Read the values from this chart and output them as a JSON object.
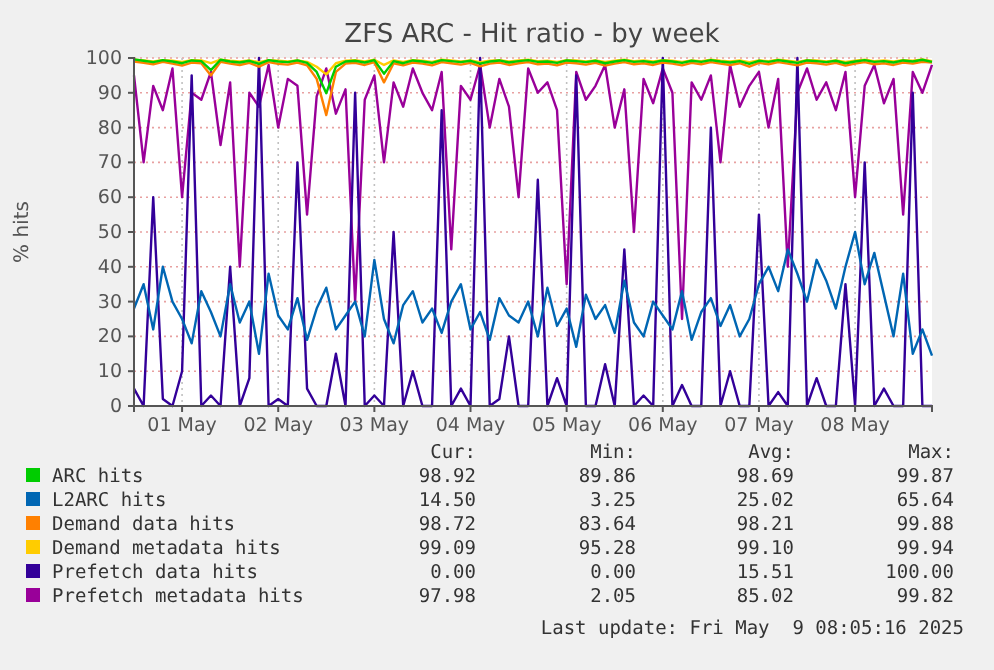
{
  "chart_data": {
    "type": "line",
    "title": "ZFS ARC - Hit ratio - by week",
    "ylabel": "% hits",
    "x": [
      "2025-05-01T00:00",
      "2025-05-01T02:24",
      "2025-05-01T04:48",
      "2025-05-01T07:12",
      "2025-05-01T09:36",
      "2025-05-01T12:00",
      "2025-05-01T14:24",
      "2025-05-01T16:48",
      "2025-05-01T19:12",
      "2025-05-01T21:36",
      "2025-05-02T00:00",
      "2025-05-02T02:24",
      "2025-05-02T04:48",
      "2025-05-02T07:12",
      "2025-05-02T09:36",
      "2025-05-02T12:00",
      "2025-05-02T14:24",
      "2025-05-02T16:48",
      "2025-05-02T19:12",
      "2025-05-02T21:36",
      "2025-05-03T00:00",
      "2025-05-03T02:24",
      "2025-05-03T04:48",
      "2025-05-03T07:12",
      "2025-05-03T09:36",
      "2025-05-03T12:00",
      "2025-05-03T14:24",
      "2025-05-03T16:48",
      "2025-05-03T19:12",
      "2025-05-03T21:36",
      "2025-05-04T00:00",
      "2025-05-04T02:24",
      "2025-05-04T04:48",
      "2025-05-04T07:12",
      "2025-05-04T09:36",
      "2025-05-04T12:00",
      "2025-05-04T14:24",
      "2025-05-04T16:48",
      "2025-05-04T19:12",
      "2025-05-04T21:36",
      "2025-05-05T00:00",
      "2025-05-05T02:24",
      "2025-05-05T04:48",
      "2025-05-05T07:12",
      "2025-05-05T09:36",
      "2025-05-05T12:00",
      "2025-05-05T14:24",
      "2025-05-05T16:48",
      "2025-05-05T19:12",
      "2025-05-05T21:36",
      "2025-05-06T00:00",
      "2025-05-06T02:24",
      "2025-05-06T04:48",
      "2025-05-06T07:12",
      "2025-05-06T09:36",
      "2025-05-06T12:00",
      "2025-05-06T14:24",
      "2025-05-06T16:48",
      "2025-05-06T19:12",
      "2025-05-06T21:36",
      "2025-05-07T00:00",
      "2025-05-07T02:24",
      "2025-05-07T04:48",
      "2025-05-07T07:12",
      "2025-05-07T09:36",
      "2025-05-07T12:00",
      "2025-05-07T14:24",
      "2025-05-07T16:48",
      "2025-05-07T19:12",
      "2025-05-07T21:36",
      "2025-05-08T00:00",
      "2025-05-08T02:24",
      "2025-05-08T04:48",
      "2025-05-08T07:12",
      "2025-05-08T09:36",
      "2025-05-08T12:00",
      "2025-05-08T14:24",
      "2025-05-08T16:48",
      "2025-05-08T19:12",
      "2025-05-08T21:36",
      "2025-05-09T00:00",
      "2025-05-09T02:24",
      "2025-05-09T04:48",
      "2025-05-09T07:12"
    ],
    "xlim": [
      "2025-05-01T00:00",
      "2025-05-09T07:12"
    ],
    "xticks": [
      {
        "value": "2025-05-01T12:00",
        "label": "01 May"
      },
      {
        "value": "2025-05-02T12:00",
        "label": "02 May"
      },
      {
        "value": "2025-05-03T12:00",
        "label": "03 May"
      },
      {
        "value": "2025-05-04T12:00",
        "label": "04 May"
      },
      {
        "value": "2025-05-05T12:00",
        "label": "05 May"
      },
      {
        "value": "2025-05-06T12:00",
        "label": "06 May"
      },
      {
        "value": "2025-05-07T12:00",
        "label": "07 May"
      },
      {
        "value": "2025-05-08T12:00",
        "label": "08 May"
      }
    ],
    "ylim": [
      0,
      100
    ],
    "yticks": [
      0,
      10,
      20,
      30,
      40,
      50,
      60,
      70,
      80,
      90,
      100
    ],
    "grid": true,
    "legend": "bottom",
    "marker": "none",
    "line_style": "solid",
    "series": [
      {
        "name": "ARC hits",
        "color": "#00cc00",
        "values": [
          99.6,
          99.2,
          98.8,
          99.4,
          99.0,
          98.5,
          99.3,
          99.1,
          96.5,
          99.5,
          99.0,
          98.7,
          99.2,
          98.3,
          99.4,
          99.0,
          98.8,
          99.3,
          98.6,
          96.0,
          89.9,
          97.5,
          99.0,
          99.2,
          98.7,
          99.4,
          95.5,
          99.1,
          98.5,
          99.3,
          99.0,
          98.6,
          99.4,
          99.1,
          98.8,
          99.2,
          98.4,
          99.0,
          99.3,
          98.7,
          99.1,
          99.4,
          98.9,
          99.0,
          98.6,
          99.3,
          99.1,
          98.8,
          99.2,
          98.5,
          99.0,
          99.4,
          98.9,
          99.1,
          98.7,
          99.3,
          99.0,
          98.6,
          99.2,
          98.9,
          99.4,
          99.0,
          98.7,
          99.1,
          98.3,
          99.2,
          98.9,
          99.4,
          99.0,
          98.6,
          99.3,
          99.1,
          98.8,
          99.2,
          98.5,
          99.0,
          99.4,
          98.9,
          99.1,
          98.7,
          99.3,
          99.0,
          99.5,
          98.9
        ]
      },
      {
        "name": "L2ARC hits",
        "color": "#0066b3",
        "values": [
          28,
          35,
          22,
          40,
          30,
          25,
          18,
          33,
          27,
          20,
          35,
          24,
          30,
          15,
          38,
          26,
          22,
          31,
          19,
          28,
          34,
          22,
          26,
          30,
          20,
          42,
          25,
          18,
          29,
          33,
          24,
          28,
          21,
          30,
          35,
          22,
          27,
          19,
          31,
          26,
          24,
          30,
          20,
          34,
          23,
          28,
          17,
          32,
          25,
          29,
          21,
          36,
          24,
          20,
          30,
          26,
          22,
          33,
          19,
          27,
          31,
          23,
          29,
          20,
          25,
          35,
          40,
          33,
          45,
          38,
          30,
          42,
          36,
          28,
          40,
          50,
          35,
          44,
          32,
          20,
          38,
          15,
          22,
          14.5
        ]
      },
      {
        "name": "Demand data hits",
        "color": "#ff8000",
        "values": [
          99.0,
          98.6,
          98.2,
          98.9,
          98.4,
          97.8,
          98.7,
          98.5,
          95.0,
          98.9,
          98.4,
          98.0,
          98.6,
          97.5,
          98.8,
          98.3,
          98.1,
          98.7,
          97.9,
          94.0,
          83.6,
          96.0,
          98.4,
          98.6,
          98.0,
          98.8,
          93.0,
          98.5,
          97.9,
          98.7,
          98.4,
          97.9,
          98.8,
          98.5,
          98.1,
          98.6,
          97.6,
          98.4,
          98.7,
          98.0,
          98.5,
          98.8,
          98.2,
          98.4,
          97.9,
          98.7,
          98.5,
          98.1,
          98.6,
          97.8,
          98.4,
          98.8,
          98.2,
          98.5,
          98.0,
          98.7,
          98.4,
          97.9,
          98.6,
          98.2,
          98.8,
          98.4,
          98.0,
          98.5,
          97.5,
          98.6,
          98.2,
          98.8,
          98.4,
          97.9,
          98.7,
          98.5,
          98.1,
          98.6,
          97.8,
          98.4,
          98.8,
          98.2,
          98.5,
          98.0,
          98.7,
          98.4,
          98.9,
          98.7
        ]
      },
      {
        "name": "Demand metadata hits",
        "color": "#ffcc00",
        "values": [
          99.5,
          99.3,
          99.0,
          99.4,
          99.2,
          98.9,
          99.4,
          99.3,
          98.5,
          99.5,
          99.2,
          99.0,
          99.3,
          98.8,
          99.4,
          99.2,
          99.0,
          99.3,
          98.9,
          97.5,
          95.3,
          98.5,
          99.2,
          99.4,
          99.0,
          99.5,
          98.0,
          99.3,
          98.9,
          99.4,
          99.2,
          98.9,
          99.5,
          99.3,
          99.0,
          99.3,
          98.8,
          99.2,
          99.4,
          99.0,
          99.3,
          99.5,
          99.1,
          99.2,
          98.9,
          99.4,
          99.3,
          99.0,
          99.3,
          98.9,
          99.2,
          99.5,
          99.1,
          99.3,
          99.0,
          99.4,
          99.2,
          98.9,
          99.3,
          99.1,
          99.5,
          99.2,
          99.0,
          99.3,
          98.8,
          99.3,
          99.1,
          99.5,
          99.2,
          98.9,
          99.4,
          99.3,
          99.0,
          99.3,
          98.9,
          99.2,
          99.5,
          99.1,
          99.3,
          99.0,
          99.4,
          99.2,
          99.6,
          99.1
        ]
      },
      {
        "name": "Prefetch data hits",
        "color": "#330099",
        "values": [
          5,
          0,
          60,
          2,
          0,
          10,
          95,
          0,
          3,
          0,
          40,
          0,
          8,
          100,
          0,
          2,
          0,
          70,
          5,
          0,
          0,
          15,
          0,
          90,
          0,
          3,
          0,
          50,
          0,
          10,
          0,
          0,
          85,
          0,
          5,
          0,
          100,
          0,
          2,
          20,
          0,
          0,
          65,
          0,
          8,
          0,
          95,
          0,
          0,
          12,
          0,
          45,
          0,
          3,
          0,
          100,
          0,
          6,
          0,
          0,
          80,
          0,
          10,
          0,
          0,
          55,
          0,
          4,
          0,
          100,
          0,
          8,
          0,
          0,
          35,
          0,
          70,
          0,
          5,
          0,
          0,
          90,
          0,
          0
        ]
      },
      {
        "name": "Prefetch metadata hits",
        "color": "#990099",
        "values": [
          95,
          70,
          92,
          85,
          97,
          60,
          90,
          88,
          96,
          75,
          93,
          40,
          90,
          86,
          98,
          80,
          94,
          92,
          55,
          89,
          97,
          84,
          91,
          30,
          88,
          95,
          70,
          93,
          86,
          97,
          90,
          85,
          96,
          45,
          92,
          88,
          98,
          80,
          94,
          86,
          60,
          97,
          90,
          93,
          85,
          35,
          96,
          88,
          92,
          98,
          80,
          91,
          50,
          94,
          87,
          97,
          90,
          25,
          93,
          88,
          95,
          70,
          98,
          86,
          92,
          96,
          80,
          94,
          40,
          90,
          97,
          88,
          93,
          85,
          96,
          60,
          92,
          98,
          87,
          94,
          55,
          96,
          90,
          98
        ]
      }
    ],
    "annotations": [
      "Cur:",
      "Min:",
      "Avg:",
      "Max:",
      "98.92",
      "89.86",
      "98.69",
      "99.87",
      "14.50",
      "3.25",
      "25.02",
      "65.64",
      "98.72",
      "83.64",
      "98.21",
      "99.88",
      "99.09",
      "95.28",
      "99.10",
      "99.94",
      "0.00",
      "0.00",
      "15.51",
      "100.00",
      "97.98",
      "2.05",
      "85.02",
      "99.82",
      "Last update: Fri May  9 08:05:16 2025"
    ]
  }
}
